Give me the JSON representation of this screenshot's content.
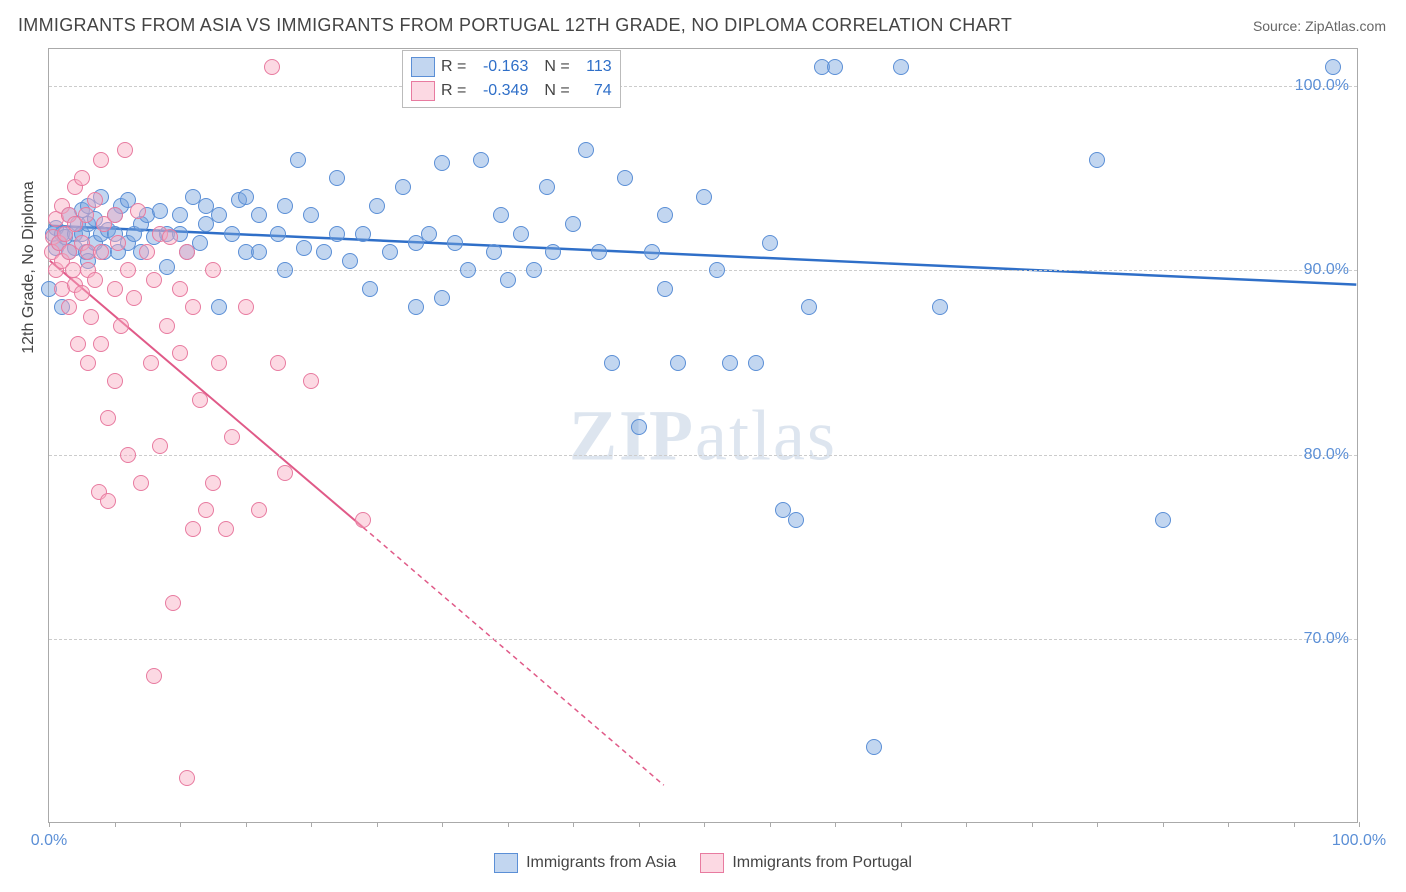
{
  "title": "IMMIGRANTS FROM ASIA VS IMMIGRANTS FROM PORTUGAL 12TH GRADE, NO DIPLOMA CORRELATION CHART",
  "source": "Source: ZipAtlas.com",
  "ylabel": "12th Grade, No Diploma",
  "watermark_a": "ZIP",
  "watermark_b": "atlas",
  "chart": {
    "type": "scatter",
    "xlim": [
      0,
      100
    ],
    "ylim": [
      60,
      102
    ],
    "xticks": [
      0,
      100
    ],
    "xtick_labels": [
      "0.0%",
      "100.0%"
    ],
    "yticks": [
      70,
      80,
      90,
      100
    ],
    "ytick_labels": [
      "70.0%",
      "80.0%",
      "90.0%",
      "100.0%"
    ],
    "grid_color": "#cccccc",
    "background_color": "#ffffff",
    "border_color": "#aaaaaa",
    "point_radius": 8,
    "series": [
      {
        "name": "Immigrants from Asia",
        "color_fill": "rgba(120,163,221,0.45)",
        "color_stroke": "#5b8fd6",
        "R": "-0.163",
        "N": "113",
        "trend": {
          "x1": 0,
          "y1": 92.4,
          "x2": 100,
          "y2": 89.2,
          "stroke": "#2f6fc8",
          "width": 2.5,
          "dash": ""
        },
        "points": [
          [
            0,
            89
          ],
          [
            0.3,
            92
          ],
          [
            0.5,
            92.3
          ],
          [
            0.5,
            91.2
          ],
          [
            0.8,
            91.5
          ],
          [
            1,
            88
          ],
          [
            1,
            92
          ],
          [
            1.2,
            91.8
          ],
          [
            1.5,
            93
          ],
          [
            1.5,
            91
          ],
          [
            2,
            92
          ],
          [
            2,
            91.2
          ],
          [
            2.2,
            92.5
          ],
          [
            2.5,
            93.3
          ],
          [
            2.5,
            92
          ],
          [
            2.8,
            91
          ],
          [
            3,
            92.5
          ],
          [
            3,
            90.5
          ],
          [
            3,
            93.5
          ],
          [
            3.5,
            91.5
          ],
          [
            3.5,
            92.8
          ],
          [
            4,
            92
          ],
          [
            4,
            94
          ],
          [
            4.2,
            91
          ],
          [
            4.5,
            92.2
          ],
          [
            5,
            93
          ],
          [
            5,
            92
          ],
          [
            5.3,
            91
          ],
          [
            5.5,
            93.5
          ],
          [
            6,
            91.5
          ],
          [
            6,
            93.8
          ],
          [
            6.5,
            92
          ],
          [
            7,
            92.5
          ],
          [
            7,
            91
          ],
          [
            7.5,
            93
          ],
          [
            8,
            91.8
          ],
          [
            8.5,
            93.2
          ],
          [
            9,
            90.2
          ],
          [
            9,
            92
          ],
          [
            10,
            92
          ],
          [
            10,
            93
          ],
          [
            10.5,
            91
          ],
          [
            11,
            94
          ],
          [
            11.5,
            91.5
          ],
          [
            12,
            92.5
          ],
          [
            12,
            93.5
          ],
          [
            13,
            93
          ],
          [
            13,
            88
          ],
          [
            14,
            92
          ],
          [
            14.5,
            93.8
          ],
          [
            15,
            91
          ],
          [
            15,
            94
          ],
          [
            16,
            91
          ],
          [
            16,
            93
          ],
          [
            17.5,
            92
          ],
          [
            18,
            90
          ],
          [
            18,
            93.5
          ],
          [
            19,
            96
          ],
          [
            19.5,
            91.2
          ],
          [
            20,
            93
          ],
          [
            21,
            91
          ],
          [
            22,
            92
          ],
          [
            22,
            95
          ],
          [
            23,
            90.5
          ],
          [
            24,
            92
          ],
          [
            24.5,
            89
          ],
          [
            25,
            93.5
          ],
          [
            26,
            91
          ],
          [
            27,
            94.5
          ],
          [
            28,
            91.5
          ],
          [
            28,
            88
          ],
          [
            29,
            92
          ],
          [
            30,
            95.8
          ],
          [
            30,
            88.5
          ],
          [
            31,
            91.5
          ],
          [
            32,
            90
          ],
          [
            33,
            96
          ],
          [
            34,
            91
          ],
          [
            34.5,
            93
          ],
          [
            35,
            89.5
          ],
          [
            36,
            92
          ],
          [
            37,
            90
          ],
          [
            38,
            94.5
          ],
          [
            38.5,
            91
          ],
          [
            40,
            92.5
          ],
          [
            41,
            96.5
          ],
          [
            42,
            91
          ],
          [
            43,
            85
          ],
          [
            44,
            95
          ],
          [
            45,
            81.5
          ],
          [
            46,
            91
          ],
          [
            47,
            89
          ],
          [
            47,
            93
          ],
          [
            48,
            85
          ],
          [
            50,
            94
          ],
          [
            51,
            90
          ],
          [
            52,
            85
          ],
          [
            54,
            85
          ],
          [
            55,
            91.5
          ],
          [
            56,
            77
          ],
          [
            57,
            76.5
          ],
          [
            58,
            88
          ],
          [
            59,
            101
          ],
          [
            60,
            101
          ],
          [
            63,
            64.2
          ],
          [
            65,
            101
          ],
          [
            68,
            88
          ],
          [
            80,
            96
          ],
          [
            85,
            76.5
          ],
          [
            98,
            101
          ]
        ]
      },
      {
        "name": "Immigrants from Portugal",
        "color_fill": "rgba(248,170,192,0.45)",
        "color_stroke": "#e87ba0",
        "R": "-0.349",
        "N": "74",
        "trend": {
          "x1": 0,
          "y1": 90.5,
          "x2": 24,
          "y2": 76,
          "stroke": "#e05a88",
          "width": 2,
          "dash": "",
          "ext_x2": 47,
          "ext_y2": 62,
          "ext_dash": "5,4"
        },
        "points": [
          [
            0.2,
            91
          ],
          [
            0.3,
            91.8
          ],
          [
            0.5,
            90
          ],
          [
            0.5,
            92.8
          ],
          [
            0.8,
            91.5
          ],
          [
            1,
            93.5
          ],
          [
            1,
            89
          ],
          [
            1,
            90.5
          ],
          [
            1.2,
            92
          ],
          [
            1.5,
            88
          ],
          [
            1.5,
            91
          ],
          [
            1.5,
            93
          ],
          [
            1.8,
            90
          ],
          [
            2,
            94.5
          ],
          [
            2,
            89.2
          ],
          [
            2,
            92.5
          ],
          [
            2.2,
            86
          ],
          [
            2.5,
            91.5
          ],
          [
            2.5,
            95
          ],
          [
            2.5,
            88.8
          ],
          [
            2.8,
            93
          ],
          [
            3,
            85
          ],
          [
            3,
            91
          ],
          [
            3,
            90
          ],
          [
            3.2,
            87.5
          ],
          [
            3.5,
            93.8
          ],
          [
            3.5,
            89.5
          ],
          [
            3.8,
            78
          ],
          [
            4,
            91
          ],
          [
            4,
            86
          ],
          [
            4,
            96
          ],
          [
            4.2,
            92.5
          ],
          [
            4.5,
            82
          ],
          [
            4.5,
            77.5
          ],
          [
            5,
            93
          ],
          [
            5,
            89
          ],
          [
            5,
            84
          ],
          [
            5.3,
            91.5
          ],
          [
            5.5,
            87
          ],
          [
            5.8,
            96.5
          ],
          [
            6,
            90
          ],
          [
            6,
            80
          ],
          [
            6.5,
            88.5
          ],
          [
            6.8,
            93.2
          ],
          [
            7,
            78.5
          ],
          [
            7.5,
            91
          ],
          [
            7.8,
            85
          ],
          [
            8,
            89.5
          ],
          [
            8,
            68
          ],
          [
            8.5,
            92
          ],
          [
            8.5,
            80.5
          ],
          [
            9,
            87
          ],
          [
            9.2,
            91.8
          ],
          [
            9.5,
            72
          ],
          [
            10,
            89
          ],
          [
            10,
            85.5
          ],
          [
            10.5,
            62.5
          ],
          [
            10.5,
            91
          ],
          [
            11,
            76
          ],
          [
            11,
            88
          ],
          [
            11.5,
            83
          ],
          [
            12,
            77
          ],
          [
            12.5,
            90
          ],
          [
            12.5,
            78.5
          ],
          [
            13,
            85
          ],
          [
            13.5,
            76
          ],
          [
            14,
            81
          ],
          [
            15,
            88
          ],
          [
            16,
            77
          ],
          [
            17,
            101
          ],
          [
            17.5,
            85
          ],
          [
            18,
            79
          ],
          [
            20,
            84
          ],
          [
            24,
            76.5
          ]
        ]
      }
    ]
  },
  "legend_bottom": [
    {
      "label": "Immigrants from Asia",
      "fill": "rgba(120,163,221,0.45)",
      "stroke": "#5b8fd6"
    },
    {
      "label": "Immigrants from Portugal",
      "fill": "rgba(248,170,192,0.45)",
      "stroke": "#e87ba0"
    }
  ]
}
